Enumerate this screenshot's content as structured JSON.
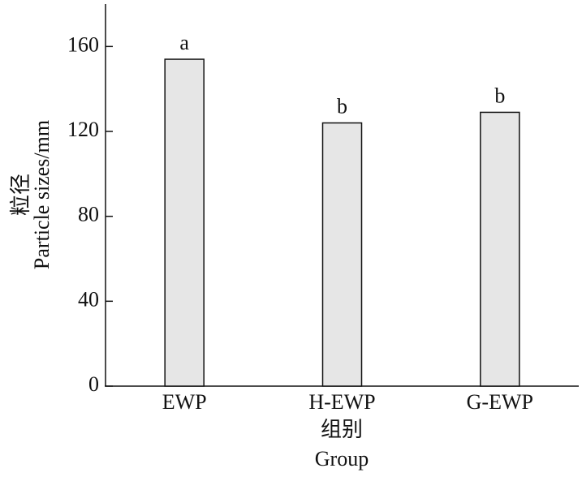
{
  "chart_data": {
    "type": "bar",
    "categories": [
      "EWP",
      "H-EWP",
      "G-EWP"
    ],
    "values": [
      154,
      124,
      129
    ],
    "annotations": [
      "a",
      "b",
      "b"
    ],
    "color": "#e6e6e6",
    "ylim": [
      0,
      180
    ],
    "yticks": [
      0,
      40,
      80,
      120,
      160
    ],
    "ylabel_zh": "粒径",
    "ylabel": "Particle sizes/mm",
    "xlabel_zh": "组别",
    "xlabel": "Group",
    "grid": false
  }
}
